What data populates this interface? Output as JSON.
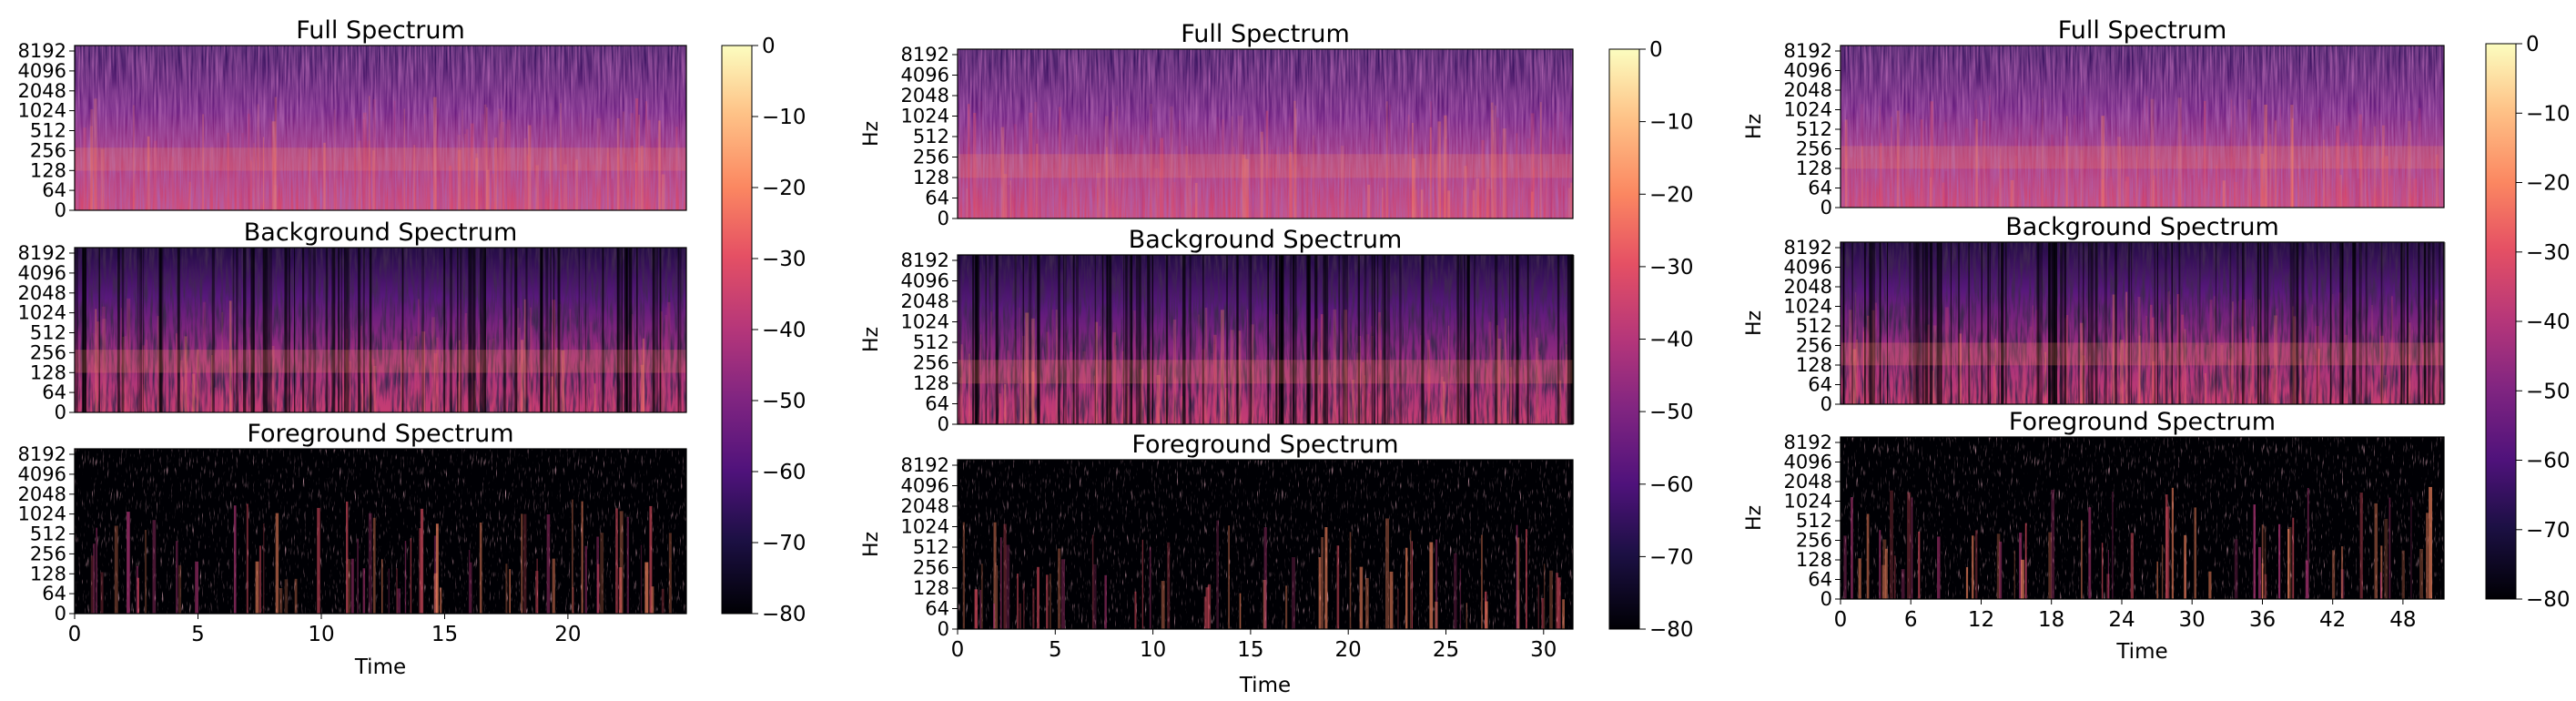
{
  "chart_data": [
    {
      "type": "heatmap",
      "panels": [
        {
          "title": "Full Spectrum",
          "ylabel": "",
          "kind": "full"
        },
        {
          "title": "Background Spectrum",
          "ylabel": "",
          "kind": "background"
        },
        {
          "title": "Foreground Spectrum",
          "ylabel": "",
          "kind": "foreground"
        }
      ],
      "xlabel": "Time",
      "xticks": [
        "0",
        "5",
        "10",
        "15",
        "20"
      ],
      "xtick_values": [
        0,
        5,
        10,
        15,
        20
      ],
      "xlim": [
        0,
        24.8
      ],
      "yticks": [
        "0",
        "64",
        "128",
        "256",
        "512",
        "1024",
        "2048",
        "4096",
        "8192"
      ],
      "colorbar": {
        "ticks": [
          "0",
          "−10",
          "−20",
          "−30",
          "−40",
          "−50",
          "−60",
          "−70",
          "−80"
        ],
        "range": [
          -80,
          0
        ]
      }
    },
    {
      "type": "heatmap",
      "panels": [
        {
          "title": "Full Spectrum",
          "ylabel": "Hz",
          "kind": "full"
        },
        {
          "title": "Background Spectrum",
          "ylabel": "Hz",
          "kind": "background"
        },
        {
          "title": "Foreground Spectrum",
          "ylabel": "Hz",
          "kind": "foreground"
        }
      ],
      "xlabel": "Time",
      "xticks": [
        "0",
        "5",
        "10",
        "15",
        "20",
        "25",
        "30"
      ],
      "xtick_values": [
        0,
        5,
        10,
        15,
        20,
        25,
        30
      ],
      "xlim": [
        0,
        31.5
      ],
      "yticks": [
        "0",
        "64",
        "128",
        "256",
        "512",
        "1024",
        "2048",
        "4096",
        "8192"
      ],
      "colorbar": {
        "ticks": [
          "0",
          "−10",
          "−20",
          "−30",
          "−40",
          "−50",
          "−60",
          "−70",
          "−80"
        ],
        "range": [
          -80,
          0
        ]
      }
    },
    {
      "type": "heatmap",
      "panels": [
        {
          "title": "Full Spectrum",
          "ylabel": "Hz",
          "kind": "full"
        },
        {
          "title": "Background Spectrum",
          "ylabel": "Hz",
          "kind": "background"
        },
        {
          "title": "Foreground Spectrum",
          "ylabel": "Hz",
          "kind": "foreground"
        }
      ],
      "xlabel": "Time",
      "xticks": [
        "0",
        "6",
        "12",
        "18",
        "24",
        "30",
        "36",
        "42",
        "48"
      ],
      "xtick_values": [
        0,
        6,
        12,
        18,
        24,
        30,
        36,
        42,
        48
      ],
      "xlim": [
        0,
        51.5
      ],
      "yticks": [
        "0",
        "64",
        "128",
        "256",
        "512",
        "1024",
        "2048",
        "4096",
        "8192"
      ],
      "colorbar": {
        "ticks": [
          "0",
          "−10",
          "−20",
          "−30",
          "−40",
          "−50",
          "−60",
          "−70",
          "−80"
        ],
        "range": [
          -80,
          0
        ]
      }
    }
  ]
}
